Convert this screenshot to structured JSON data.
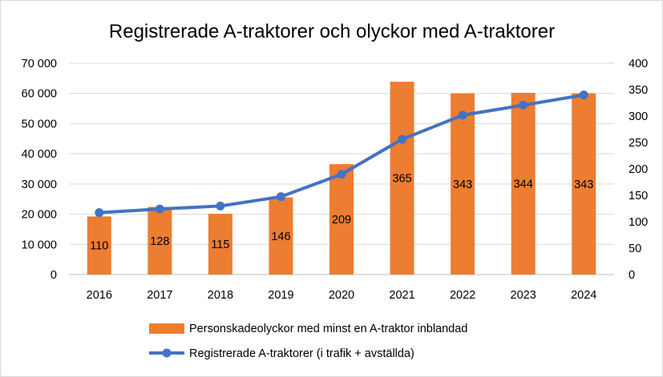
{
  "chart_data": {
    "type": "bar",
    "title": "Registrerade A-traktorer och olyckor med A-traktorer",
    "categories": [
      "2016",
      "2017",
      "2018",
      "2019",
      "2020",
      "2021",
      "2022",
      "2023",
      "2024"
    ],
    "series": [
      {
        "name": "Personskadeolyckor med minst en A-traktor inblandad",
        "type": "bar",
        "axis": "right",
        "color": "#ED7D31",
        "values": [
          110,
          128,
          115,
          146,
          209,
          365,
          343,
          344,
          343
        ],
        "labels": [
          "110",
          "128",
          "115",
          "146",
          "209",
          "365",
          "343",
          "344",
          "343"
        ]
      },
      {
        "name": "Registrerade A-traktorer (i trafik + avställda)",
        "type": "line",
        "axis": "left",
        "color": "#4472C4",
        "values": [
          20500,
          21700,
          22700,
          25800,
          33200,
          44800,
          52800,
          56100,
          59500
        ]
      }
    ],
    "y_left": {
      "ylim": [
        0,
        70000
      ],
      "ticks": [
        "0",
        "10 000",
        "20 000",
        "30 000",
        "40 000",
        "50 000",
        "60 000",
        "70 000"
      ]
    },
    "y_right": {
      "ylim": [
        0,
        400
      ],
      "ticks": [
        "0",
        "50",
        "100",
        "150",
        "200",
        "250",
        "300",
        "350",
        "400"
      ]
    },
    "grid": true,
    "legend_position": "bottom"
  }
}
